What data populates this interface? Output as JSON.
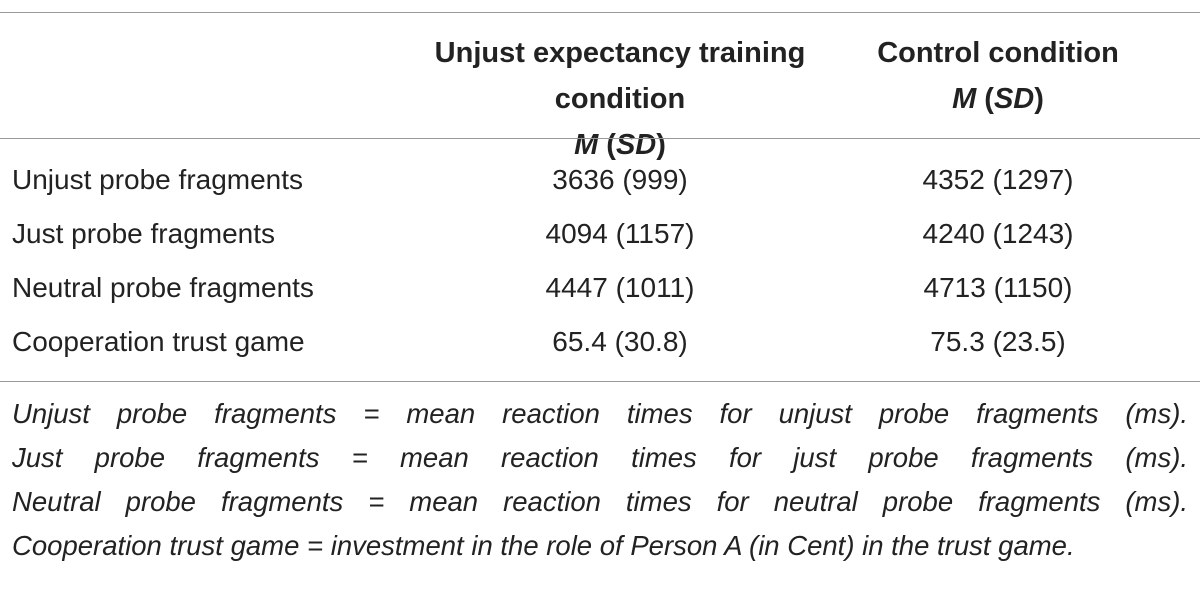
{
  "table": {
    "columns": [
      {
        "label": "Unjust expectancy training condition",
        "stat": "M (SD)"
      },
      {
        "label": "Control condition",
        "stat": "M (SD)"
      }
    ],
    "rows": [
      [
        "Unjust probe fragments",
        "3636 (999)",
        "4352 (1297)"
      ],
      [
        "Just probe fragments",
        "4094 (1157)",
        "4240 (1243)"
      ],
      [
        "Neutral probe fragments",
        "4447 (1011)",
        "4713 (1150)"
      ],
      [
        "Cooperation trust game",
        "65.4 (30.8)",
        "75.3 (23.5)"
      ]
    ],
    "notes": [
      "Unjust probe fragments = mean reaction times for unjust probe fragments (ms).",
      "Just probe fragments = mean reaction times for just probe fragments (ms).",
      "Neutral probe fragments = mean reaction times for neutral probe fragments (ms).",
      "Cooperation trust game = investment in the role of Person A (in Cent) in the trust game."
    ]
  }
}
